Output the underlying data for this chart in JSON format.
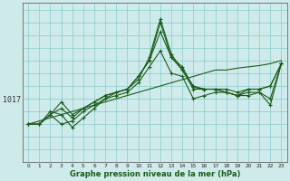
{
  "xlabel": "Graphe pression niveau de la mer (hPa)",
  "background_color": "#ceeaea",
  "line_color": "#1a5c1a",
  "grid_color": "#88cccc",
  "x_ticks": [
    0,
    1,
    2,
    3,
    4,
    5,
    6,
    7,
    8,
    9,
    10,
    11,
    12,
    13,
    14,
    15,
    16,
    17,
    18,
    19,
    20,
    21,
    22,
    23
  ],
  "y_label_value": 1017,
  "ylim": [
    1007,
    1032
  ],
  "xlim": [
    -0.5,
    23.5
  ],
  "lines": [
    [
      1013.0,
      1013.0,
      1014.5,
      1013.0,
      1013.5,
      1015.0,
      1016.0,
      1017.0,
      1017.5,
      1018.0,
      1019.5,
      1022.0,
      1024.5,
      1021.0,
      1020.5,
      1017.0,
      1017.5,
      1018.0,
      1018.0,
      1017.5,
      1018.0,
      1018.0,
      1016.0,
      1022.5
    ],
    [
      1013.0,
      1013.0,
      1014.5,
      1015.5,
      1014.0,
      1015.5,
      1016.5,
      1017.5,
      1018.0,
      1018.5,
      1020.5,
      1023.0,
      1027.5,
      1023.5,
      1021.5,
      1018.5,
      1018.5,
      1018.5,
      1018.0,
      1017.5,
      1018.5,
      1018.5,
      1019.0,
      1022.5
    ],
    [
      1013.0,
      1013.0,
      1014.5,
      1016.5,
      1014.5,
      1015.5,
      1016.5,
      1017.5,
      1018.0,
      1018.5,
      1020.5,
      1023.0,
      1029.0,
      1023.5,
      1022.0,
      1018.8,
      1018.5,
      1018.5,
      1018.5,
      1018.0,
      1018.5,
      1018.5,
      1019.0,
      1022.5
    ],
    [
      1013.0,
      1013.0,
      1015.0,
      1014.5,
      1012.5,
      1014.0,
      1015.5,
      1017.0,
      1018.0,
      1018.5,
      1020.0,
      1023.5,
      1029.5,
      1024.0,
      1021.5,
      1019.0,
      1018.5,
      1018.5,
      1018.0,
      1017.5,
      1017.5,
      1018.0,
      1017.0,
      1022.5
    ]
  ],
  "trend_line": [
    1013.0,
    1013.5,
    1014.0,
    1014.5,
    1015.0,
    1015.5,
    1016.0,
    1016.5,
    1017.0,
    1017.5,
    1018.0,
    1018.5,
    1019.0,
    1019.5,
    1020.0,
    1020.5,
    1021.0,
    1021.5,
    1021.5,
    1021.8,
    1022.0,
    1022.2,
    1022.5,
    1023.0
  ]
}
